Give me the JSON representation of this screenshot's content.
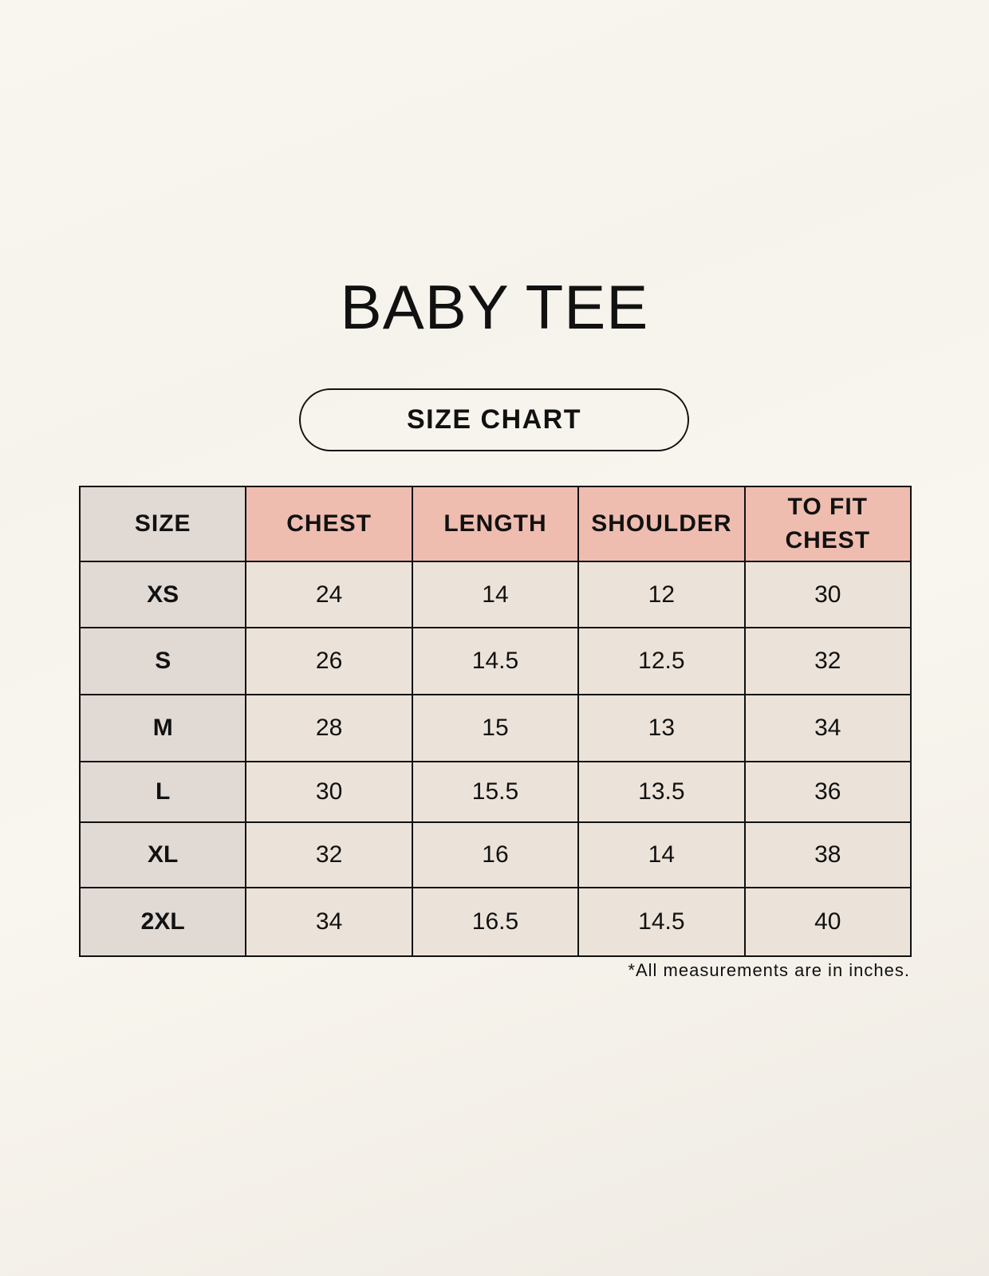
{
  "title": "BABY TEE",
  "subtitle": "SIZE CHART",
  "table": {
    "headers": [
      "SIZE",
      "CHEST",
      "LENGTH",
      "SHOULDER",
      "TO FIT CHEST"
    ],
    "rows": [
      [
        "XS",
        "24",
        "14",
        "12",
        "30"
      ],
      [
        "S",
        "26",
        "14.5",
        "12.5",
        "32"
      ],
      [
        "M",
        "28",
        "15",
        "13",
        "34"
      ],
      [
        "L",
        "30",
        "15.5",
        "13.5",
        "36"
      ],
      [
        "XL",
        "32",
        "16",
        "14",
        "38"
      ],
      [
        "2XL",
        "34",
        "16.5",
        "14.5",
        "40"
      ]
    ]
  },
  "footnote": "*All measurements are in inches.",
  "colors": {
    "header": "#eebdb0",
    "size_column": "#e1d9d4",
    "cell": "#ebe3d9"
  }
}
